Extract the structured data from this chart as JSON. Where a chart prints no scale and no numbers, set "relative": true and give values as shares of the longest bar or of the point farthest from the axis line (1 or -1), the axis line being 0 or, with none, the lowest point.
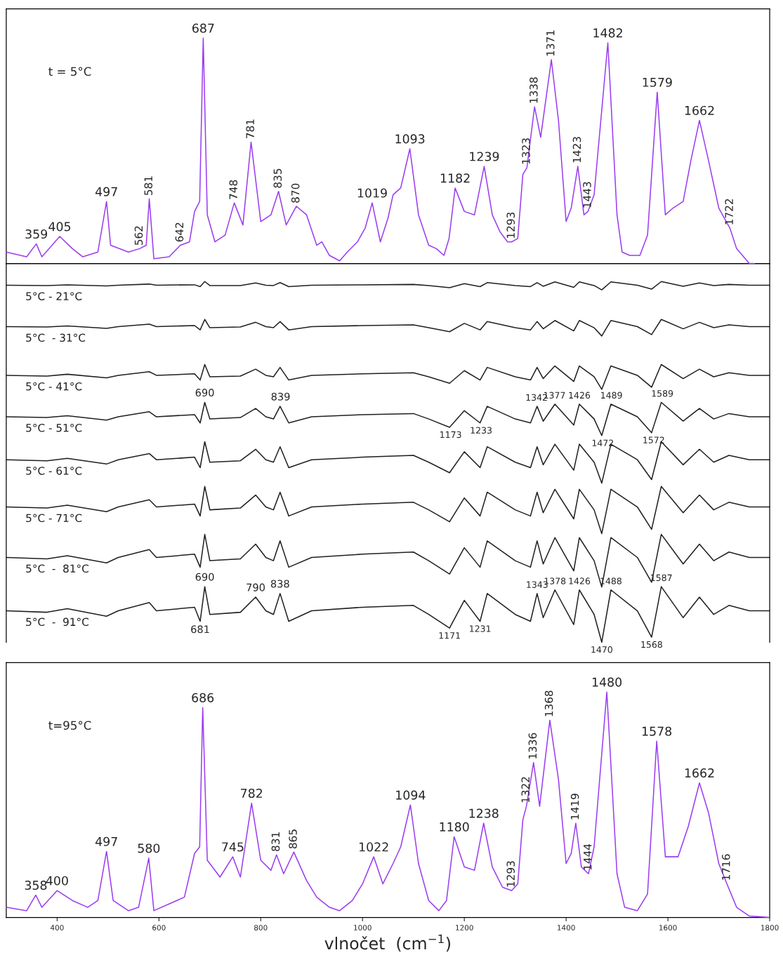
{
  "chart_data": [
    {
      "type": "line",
      "relative": true,
      "tick_labels": false,
      "xlim": [
        300,
        1800
      ],
      "x": [
        300,
        340,
        359,
        370,
        405,
        430,
        450,
        480,
        497,
        505,
        540,
        562,
        575,
        581,
        590,
        620,
        642,
        660,
        670,
        680,
        687,
        695,
        710,
        730,
        748,
        765,
        781,
        800,
        820,
        835,
        850,
        870,
        890,
        910,
        920,
        935,
        955,
        970,
        990,
        1005,
        1019,
        1035,
        1050,
        1060,
        1075,
        1093,
        1110,
        1130,
        1145,
        1160,
        1170,
        1182,
        1200,
        1220,
        1239,
        1255,
        1270,
        1285,
        1293,
        1305,
        1315,
        1323,
        1338,
        1350,
        1371,
        1385,
        1400,
        1410,
        1423,
        1435,
        1443,
        1455,
        1482,
        1500,
        1510,
        1525,
        1545,
        1560,
        1579,
        1595,
        1610,
        1630,
        1645,
        1662,
        1680,
        1700,
        1722,
        1735,
        1760,
        1770
      ],
      "series": [
        {
          "color": "#9b3cf0",
          "values": [
            0.051,
            0.03,
            0.087,
            0.03,
            0.12,
            0.066,
            0.03,
            0.051,
            0.275,
            0.081,
            0.051,
            0.066,
            0.081,
            0.287,
            0.021,
            0.03,
            0.081,
            0.096,
            0.231,
            0.275,
            1,
            0.216,
            0.096,
            0.126,
            0.269,
            0.171,
            0.539,
            0.186,
            0.216,
            0.32,
            0.171,
            0.254,
            0.216,
            0.081,
            0.096,
            0.036,
            0.012,
            0.051,
            0.096,
            0.156,
            0.269,
            0.096,
            0.201,
            0.305,
            0.335,
            0.509,
            0.216,
            0.081,
            0.066,
            0.036,
            0.111,
            0.335,
            0.231,
            0.216,
            0.431,
            0.216,
            0.141,
            0.096,
            0.096,
            0.111,
            0.395,
            0.425,
            0.695,
            0.56,
            0.904,
            0.635,
            0.186,
            0.246,
            0.431,
            0.216,
            0.231,
            0.305,
            0.979,
            0.216,
            0.051,
            0.036,
            0.036,
            0.126,
            0.76,
            0.216,
            0.246,
            0.275,
            0.455,
            0.635,
            0.455,
            0.246,
            0.156,
            0.066,
            0,
            0
          ]
        }
      ],
      "annotations": [
        "t = 5°C",
        {
          "text": "359",
          "x": 359,
          "y": 0.087
        },
        {
          "text": "405",
          "x": 405,
          "y": 0.12
        },
        {
          "text": "497",
          "x": 497,
          "y": 0.275
        },
        {
          "text": "562",
          "x": 562,
          "y": 0.066
        },
        {
          "text": "581",
          "x": 581,
          "y": 0.287
        },
        {
          "text": "642",
          "x": 642,
          "y": 0.081
        },
        {
          "text": "687",
          "x": 687,
          "y": 1
        },
        {
          "text": "748",
          "x": 748,
          "y": 0.269
        },
        {
          "text": "781",
          "x": 781,
          "y": 0.539
        },
        {
          "text": "835",
          "x": 835,
          "y": 0.32
        },
        {
          "text": "870",
          "x": 870,
          "y": 0.254
        },
        {
          "text": "1019",
          "x": 1019,
          "y": 0.269
        },
        {
          "text": "1093",
          "x": 1093,
          "y": 0.509
        },
        {
          "text": "1182",
          "x": 1182,
          "y": 0.335
        },
        {
          "text": "1239",
          "x": 1239,
          "y": 0.431
        },
        {
          "text": "1293",
          "x": 1293,
          "y": 0.096
        },
        {
          "text": "1323",
          "x": 1323,
          "y": 0.425
        },
        {
          "text": "1338",
          "x": 1338,
          "y": 0.695
        },
        {
          "text": "1371",
          "x": 1371,
          "y": 0.904
        },
        {
          "text": "1423",
          "x": 1423,
          "y": 0.431
        },
        {
          "text": "1443",
          "x": 1443,
          "y": 0.231
        },
        {
          "text": "1482",
          "x": 1482,
          "y": 0.979
        },
        {
          "text": "1579",
          "x": 1579,
          "y": 0.76
        },
        {
          "text": "1662",
          "x": 1662,
          "y": 0.635
        },
        {
          "text": "1722",
          "x": 1722,
          "y": 0.156
        }
      ]
    },
    {
      "type": "line",
      "relative": true,
      "tick_labels": false,
      "xlim": [
        300,
        1800
      ],
      "x": [
        300,
        380,
        420,
        497,
        520,
        581,
        595,
        670,
        681,
        690,
        700,
        760,
        790,
        810,
        825,
        838,
        855,
        900,
        1000,
        1100,
        1130,
        1171,
        1200,
        1231,
        1245,
        1300,
        1330,
        1343,
        1355,
        1378,
        1415,
        1426,
        1455,
        1470,
        1488,
        1540,
        1568,
        1587,
        1630,
        1662,
        1690,
        1720,
        1760,
        1800
      ],
      "series": [
        {
          "name": "5°C - 21°C",
          "color": "#202020",
          "values": [
            0.99,
            0.989,
            0.991,
            0.988,
            0.99,
            0.993,
            0.99,
            0.991,
            0.986,
            1.0,
            0.989,
            0.989,
            0.996,
            0.99,
            0.989,
            0.997,
            0.986,
            0.99,
            0.991,
            0.992,
            0.989,
            0.983,
            0.994,
            0.986,
            0.997,
            0.989,
            0.986,
            0.997,
            0.987,
            0.999,
            0.984,
            0.999,
            0.989,
            0.977,
            0.999,
            0.99,
            0.979,
            1.0,
            0.987,
            0.996,
            0.989,
            0.992,
            0.99,
            0.99
          ]
        },
        {
          "name": "5°C  - 31°C",
          "color": "#202020",
          "values": [
            0.875,
            0.874,
            0.877,
            0.87,
            0.875,
            0.882,
            0.875,
            0.878,
            0.866,
            0.895,
            0.872,
            0.874,
            0.887,
            0.875,
            0.872,
            0.889,
            0.866,
            0.875,
            0.878,
            0.88,
            0.872,
            0.861,
            0.884,
            0.866,
            0.889,
            0.872,
            0.866,
            0.889,
            0.869,
            0.892,
            0.863,
            0.892,
            0.872,
            0.849,
            0.892,
            0.875,
            0.853,
            0.895,
            0.869,
            0.887,
            0.872,
            0.88,
            0.875,
            0.875
          ]
        },
        {
          "name": "5°C - 41°C",
          "color": "#202020",
          "values": [
            0.74,
            0.738,
            0.743,
            0.733,
            0.74,
            0.75,
            0.74,
            0.744,
            0.727,
            0.77,
            0.736,
            0.738,
            0.757,
            0.74,
            0.736,
            0.762,
            0.727,
            0.74,
            0.744,
            0.747,
            0.736,
            0.718,
            0.753,
            0.727,
            0.762,
            0.736,
            0.727,
            0.762,
            0.731,
            0.766,
            0.723,
            0.766,
            0.736,
            0.701,
            0.766,
            0.74,
            0.707,
            0.77,
            0.731,
            0.757,
            0.736,
            0.747,
            0.74,
            0.74
          ]
        },
        {
          "name": "5°C - 51°C",
          "color": "#202020",
          "values": [
            0.625,
            0.623,
            0.628,
            0.616,
            0.625,
            0.639,
            0.625,
            0.631,
            0.608,
            0.665,
            0.619,
            0.623,
            0.648,
            0.625,
            0.619,
            0.654,
            0.608,
            0.625,
            0.631,
            0.634,
            0.619,
            0.596,
            0.642,
            0.608,
            0.654,
            0.619,
            0.608,
            0.654,
            0.613,
            0.66,
            0.602,
            0.66,
            0.619,
            0.573,
            0.66,
            0.625,
            0.581,
            0.665,
            0.613,
            0.648,
            0.619,
            0.634,
            0.625,
            0.625
          ]
        },
        {
          "name": "5°C - 61°C",
          "color": "#202020",
          "values": [
            0.506,
            0.503,
            0.51,
            0.494,
            0.506,
            0.523,
            0.506,
            0.513,
            0.484,
            0.556,
            0.499,
            0.503,
            0.535,
            0.506,
            0.499,
            0.542,
            0.484,
            0.506,
            0.513,
            0.518,
            0.499,
            0.47,
            0.528,
            0.484,
            0.542,
            0.499,
            0.484,
            0.542,
            0.492,
            0.549,
            0.477,
            0.549,
            0.499,
            0.441,
            0.549,
            0.506,
            0.451,
            0.556,
            0.492,
            0.535,
            0.499,
            0.518,
            0.506,
            0.506
          ]
        },
        {
          "name": "5°C - 71°C",
          "color": "#202020",
          "values": [
            0.375,
            0.372,
            0.38,
            0.362,
            0.375,
            0.395,
            0.375,
            0.383,
            0.35,
            0.432,
            0.367,
            0.372,
            0.408,
            0.375,
            0.367,
            0.416,
            0.35,
            0.375,
            0.383,
            0.388,
            0.367,
            0.334,
            0.4,
            0.35,
            0.416,
            0.367,
            0.35,
            0.416,
            0.359,
            0.424,
            0.342,
            0.424,
            0.367,
            0.301,
            0.424,
            0.375,
            0.313,
            0.432,
            0.359,
            0.408,
            0.367,
            0.388,
            0.375,
            0.375
          ]
        },
        {
          "name": "5°C  -  81°C",
          "color": "#202020",
          "values": [
            0.235,
            0.231,
            0.24,
            0.22,
            0.235,
            0.257,
            0.235,
            0.244,
            0.208,
            0.299,
            0.226,
            0.231,
            0.272,
            0.235,
            0.226,
            0.281,
            0.208,
            0.235,
            0.244,
            0.25,
            0.226,
            0.189,
            0.262,
            0.208,
            0.281,
            0.226,
            0.208,
            0.281,
            0.217,
            0.29,
            0.198,
            0.29,
            0.226,
            0.153,
            0.29,
            0.235,
            0.166,
            0.299,
            0.217,
            0.272,
            0.226,
            0.25,
            0.235,
            0.235
          ]
        },
        {
          "name": "5°C  -  91°C",
          "color": "#202020",
          "values": [
            0.087,
            0.083,
            0.093,
            0.072,
            0.087,
            0.11,
            0.087,
            0.097,
            0.058,
            0.154,
            0.077,
            0.083,
            0.125,
            0.087,
            0.077,
            0.135,
            0.058,
            0.087,
            0.097,
            0.102,
            0.077,
            0.039,
            0.116,
            0.058,
            0.135,
            0.077,
            0.058,
            0.135,
            0.068,
            0.145,
            0.049,
            0.145,
            0.077,
            0,
            0.145,
            0.087,
            0.014,
            0.154,
            0.068,
            0.125,
            0.077,
            0.102,
            0.087,
            0.087
          ]
        }
      ],
      "annotations": [
        {
          "text": "690",
          "x": 690,
          "y": 0.665
        },
        {
          "text": "839",
          "x": 839,
          "y": 0.654
        },
        {
          "text": "1342",
          "x": 1342,
          "y": 0.654
        },
        {
          "text": "1377",
          "x": 1377,
          "y": 0.66
        },
        {
          "text": "1426",
          "x": 1426,
          "y": 0.66
        },
        {
          "text": "1489",
          "x": 1489,
          "y": 0.66
        },
        {
          "text": "1589",
          "x": 1589,
          "y": 0.665
        },
        {
          "text": "1173",
          "x": 1173,
          "y": 0.596
        },
        {
          "text": "1233",
          "x": 1233,
          "y": 0.608
        },
        {
          "text": "1472",
          "x": 1472,
          "y": 0.573
        },
        {
          "text": "1572",
          "x": 1572,
          "y": 0.581
        },
        {
          "text": "690",
          "x": 690,
          "y": 0.154
        },
        {
          "text": "790",
          "x": 790,
          "y": 0.125
        },
        {
          "text": "838",
          "x": 838,
          "y": 0.135
        },
        {
          "text": "1343",
          "x": 1343,
          "y": 0.135
        },
        {
          "text": "1378",
          "x": 1378,
          "y": 0.145
        },
        {
          "text": "1426",
          "x": 1426,
          "y": 0.145
        },
        {
          "text": "1488",
          "x": 1488,
          "y": 0.145
        },
        {
          "text": "1587",
          "x": 1587,
          "y": 0.154
        },
        {
          "text": "681",
          "x": 681,
          "y": 0.058
        },
        {
          "text": "1171",
          "x": 1171,
          "y": 0.039
        },
        {
          "text": "1231",
          "x": 1231,
          "y": 0.058
        },
        {
          "text": "1470",
          "x": 1470,
          "y": 0
        },
        {
          "text": "1568",
          "x": 1568,
          "y": 0.014
        }
      ]
    },
    {
      "type": "line",
      "relative": true,
      "tick_labels": "x",
      "xlim": [
        300,
        1800
      ],
      "xticks": [
        400,
        600,
        800,
        1000,
        1200,
        1400,
        1600,
        1800
      ],
      "xlabel": "vlnočet  (cm$^{−1}$)",
      "x": [
        300,
        340,
        358,
        370,
        400,
        430,
        460,
        480,
        497,
        510,
        540,
        560,
        580,
        590,
        620,
        650,
        670,
        680,
        686,
        695,
        720,
        745,
        760,
        782,
        800,
        820,
        831,
        845,
        865,
        890,
        910,
        935,
        955,
        980,
        1000,
        1022,
        1040,
        1060,
        1075,
        1094,
        1110,
        1130,
        1150,
        1165,
        1180,
        1200,
        1220,
        1238,
        1255,
        1275,
        1293,
        1305,
        1315,
        1322,
        1336,
        1348,
        1368,
        1385,
        1400,
        1410,
        1419,
        1430,
        1444,
        1455,
        1480,
        1500,
        1515,
        1540,
        1560,
        1578,
        1595,
        1620,
        1640,
        1662,
        1680,
        1700,
        1716,
        1735,
        1760,
        1800
      ],
      "series": [
        {
          "color": "#9b3cf0",
          "values": [
            0.045,
            0.03,
            0.099,
            0.045,
            0.119,
            0.075,
            0.045,
            0.075,
            0.293,
            0.075,
            0.03,
            0.045,
            0.263,
            0.03,
            0.06,
            0.09,
            0.284,
            0.313,
            0.931,
            0.254,
            0.179,
            0.269,
            0.179,
            0.507,
            0.254,
            0.209,
            0.278,
            0.194,
            0.29,
            0.164,
            0.09,
            0.045,
            0.03,
            0.075,
            0.149,
            0.269,
            0.149,
            0.239,
            0.313,
            0.499,
            0.239,
            0.075,
            0.03,
            0.075,
            0.358,
            0.224,
            0.209,
            0.418,
            0.224,
            0.134,
            0.119,
            0.149,
            0.433,
            0.493,
            0.687,
            0.493,
            0.875,
            0.612,
            0.239,
            0.284,
            0.418,
            0.224,
            0.194,
            0.313,
            1,
            0.194,
            0.045,
            0.03,
            0.104,
            0.782,
            0.269,
            0.269,
            0.403,
            0.597,
            0.463,
            0.239,
            0.149,
            0.045,
            0.006,
            0
          ]
        }
      ],
      "annotations": [
        "t=95°C",
        {
          "text": "358",
          "x": 358,
          "y": 0.099
        },
        {
          "text": "400",
          "x": 400,
          "y": 0.119
        },
        {
          "text": "497",
          "x": 497,
          "y": 0.293
        },
        {
          "text": "580",
          "x": 580,
          "y": 0.263
        },
        {
          "text": "686",
          "x": 686,
          "y": 0.931
        },
        {
          "text": "745",
          "x": 745,
          "y": 0.269
        },
        {
          "text": "782",
          "x": 782,
          "y": 0.507
        },
        {
          "text": "831",
          "x": 831,
          "y": 0.278
        },
        {
          "text": "865",
          "x": 865,
          "y": 0.29
        },
        {
          "text": "1022",
          "x": 1022,
          "y": 0.269
        },
        {
          "text": "1094",
          "x": 1094,
          "y": 0.499
        },
        {
          "text": "1180",
          "x": 1180,
          "y": 0.358
        },
        {
          "text": "1238",
          "x": 1238,
          "y": 0.418
        },
        {
          "text": "1293",
          "x": 1293,
          "y": 0.119
        },
        {
          "text": "1322",
          "x": 1322,
          "y": 0.493
        },
        {
          "text": "1336",
          "x": 1336,
          "y": 0.687
        },
        {
          "text": "1368",
          "x": 1368,
          "y": 0.875
        },
        {
          "text": "1419",
          "x": 1419,
          "y": 0.418
        },
        {
          "text": "1444",
          "x": 1444,
          "y": 0.194
        },
        {
          "text": "1480",
          "x": 1480,
          "y": 1
        },
        {
          "text": "1578",
          "x": 1578,
          "y": 0.782
        },
        {
          "text": "1662",
          "x": 1662,
          "y": 0.597
        },
        {
          "text": "1716",
          "x": 1716,
          "y": 0.149
        }
      ]
    }
  ]
}
